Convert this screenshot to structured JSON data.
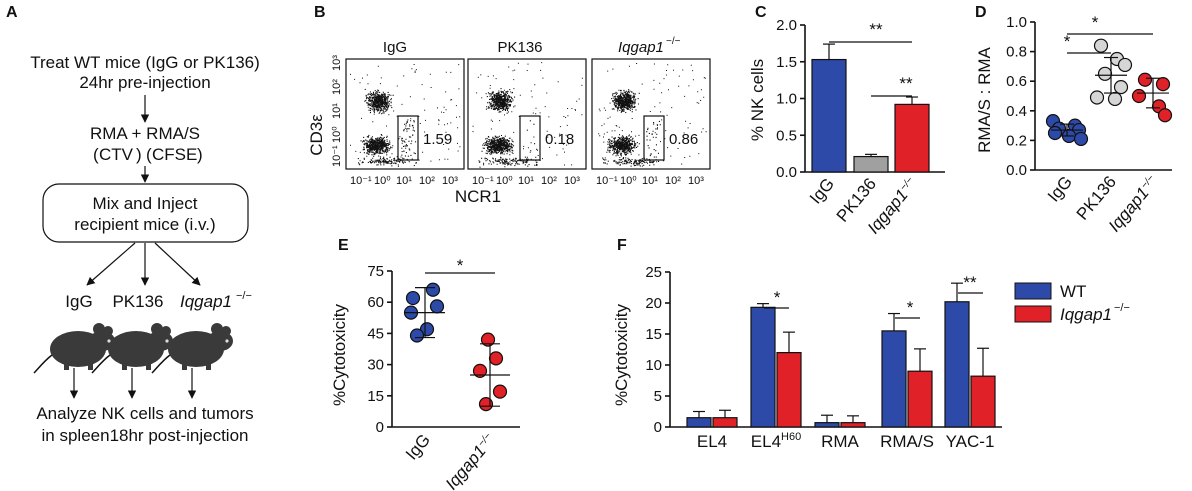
{
  "panels": {
    "A": {
      "label": "A",
      "step1_line1": "Treat WT mice (IgG or PK136)",
      "step1_line2": "24hr pre-injection",
      "step2_line1": "RMA + RMA/S",
      "ctv_open": "(",
      "ctv": "CTV",
      "ctv_close": ")",
      "cfse_open": "(",
      "cfse": "CFSE",
      "cfse_close": ")",
      "box_line1": "Mix and Inject",
      "box_line2": "recipient mice (i.v.)",
      "groups": [
        "IgG",
        "PK136",
        "Iqgap1"
      ],
      "group_sup": "−/−",
      "final_line1": "Analyze NK cells and tumors",
      "final_line2": "in spleen18hr post-injection"
    },
    "B": {
      "label": "B",
      "titles": [
        "IgG",
        "PK136",
        "Iqgap1"
      ],
      "title_sup": "−/−",
      "gate_values": [
        "1.59",
        "0.18",
        "0.86"
      ],
      "ylabel": "CD3ε",
      "xlabel": "NCR1",
      "ticks": [
        "10⁻¹",
        "10⁰",
        "10¹",
        "10²",
        "10³"
      ]
    },
    "C": {
      "label": "C",
      "sig": [
        "**",
        "**"
      ],
      "ytick_labels": [
        "0.0",
        "0.5",
        "1.0",
        "1.5",
        "2.0"
      ]
    },
    "D": {
      "label": "D",
      "sig": [
        "*",
        "*"
      ],
      "ytick_labels": [
        "0.0",
        "0.2",
        "0.4",
        "0.6",
        "0.8",
        "1.0"
      ]
    },
    "E": {
      "label": "E",
      "sig": [
        "*"
      ],
      "ytick_labels": [
        "0",
        "15",
        "30",
        "45",
        "60",
        "75"
      ]
    },
    "F": {
      "label": "F",
      "sig": [
        "*",
        "*",
        "**"
      ],
      "ytick_labels": [
        "0",
        "5",
        "10",
        "15",
        "20",
        "25"
      ],
      "cat_sup": "H60",
      "legend": [
        "WT",
        "Iqgap1"
      ],
      "legend_sup": "−/−"
    }
  },
  "colors": {
    "blue": "#2e4aa8",
    "red": "#e02127",
    "gray": "#a0a0a0",
    "lightgray": "#d6d6d6",
    "ctv": "#2e3f9e",
    "cfse": "#2e9c48"
  },
  "chart_data": [
    {
      "id": "C",
      "type": "bar",
      "categories": [
        "IgG",
        "PK136",
        "Iqgap1−/−"
      ],
      "values": [
        1.53,
        0.21,
        0.92
      ],
      "errors": [
        0.21,
        0.03,
        0.1
      ],
      "ylabel": "% NK cells",
      "ylim": [
        0,
        2.0
      ]
    },
    {
      "id": "D",
      "type": "scatter",
      "categories": [
        "IgG",
        "PK136",
        "Iqgap1−/−"
      ],
      "points": [
        [
          0.33,
          0.3,
          0.28,
          0.27,
          0.25,
          0.23,
          0.21
        ],
        [
          0.84,
          0.75,
          0.71,
          0.65,
          0.56,
          0.49,
          0.48
        ],
        [
          0.61,
          0.58,
          0.5,
          0.43,
          0.37
        ]
      ],
      "mean": [
        0.27,
        0.64,
        0.52
      ],
      "sd": [
        0.04,
        0.12,
        0.1
      ],
      "ylabel": "RMA/S : RMA",
      "ylim": [
        0,
        1.0
      ]
    },
    {
      "id": "E",
      "type": "scatter",
      "categories": [
        "IgG",
        "Iqgap1−/−"
      ],
      "points": [
        [
          66,
          62,
          58,
          55,
          47,
          44
        ],
        [
          42,
          33,
          27,
          17,
          11
        ]
      ],
      "mean": [
        55,
        25
      ],
      "sd": [
        12,
        15
      ],
      "ylabel": "%Cytotoxicity",
      "ylim": [
        0,
        75
      ]
    },
    {
      "id": "F",
      "type": "bar",
      "categories": [
        "EL4",
        "EL4",
        "RMA",
        "RMA/S",
        "YAC-1"
      ],
      "series": [
        {
          "name": "WT",
          "values": [
            1.5,
            19.3,
            0.7,
            15.5,
            20.2
          ],
          "errors": [
            1.0,
            0.6,
            1.2,
            2.8,
            3.0
          ]
        },
        {
          "name": "Iqgap1−/−",
          "values": [
            1.5,
            12.0,
            0.7,
            9.0,
            8.2
          ],
          "errors": [
            1.2,
            3.3,
            1.1,
            3.6,
            4.5
          ]
        }
      ],
      "ylabel": "%Cytotoxicity",
      "ylim": [
        0,
        25
      ]
    }
  ]
}
